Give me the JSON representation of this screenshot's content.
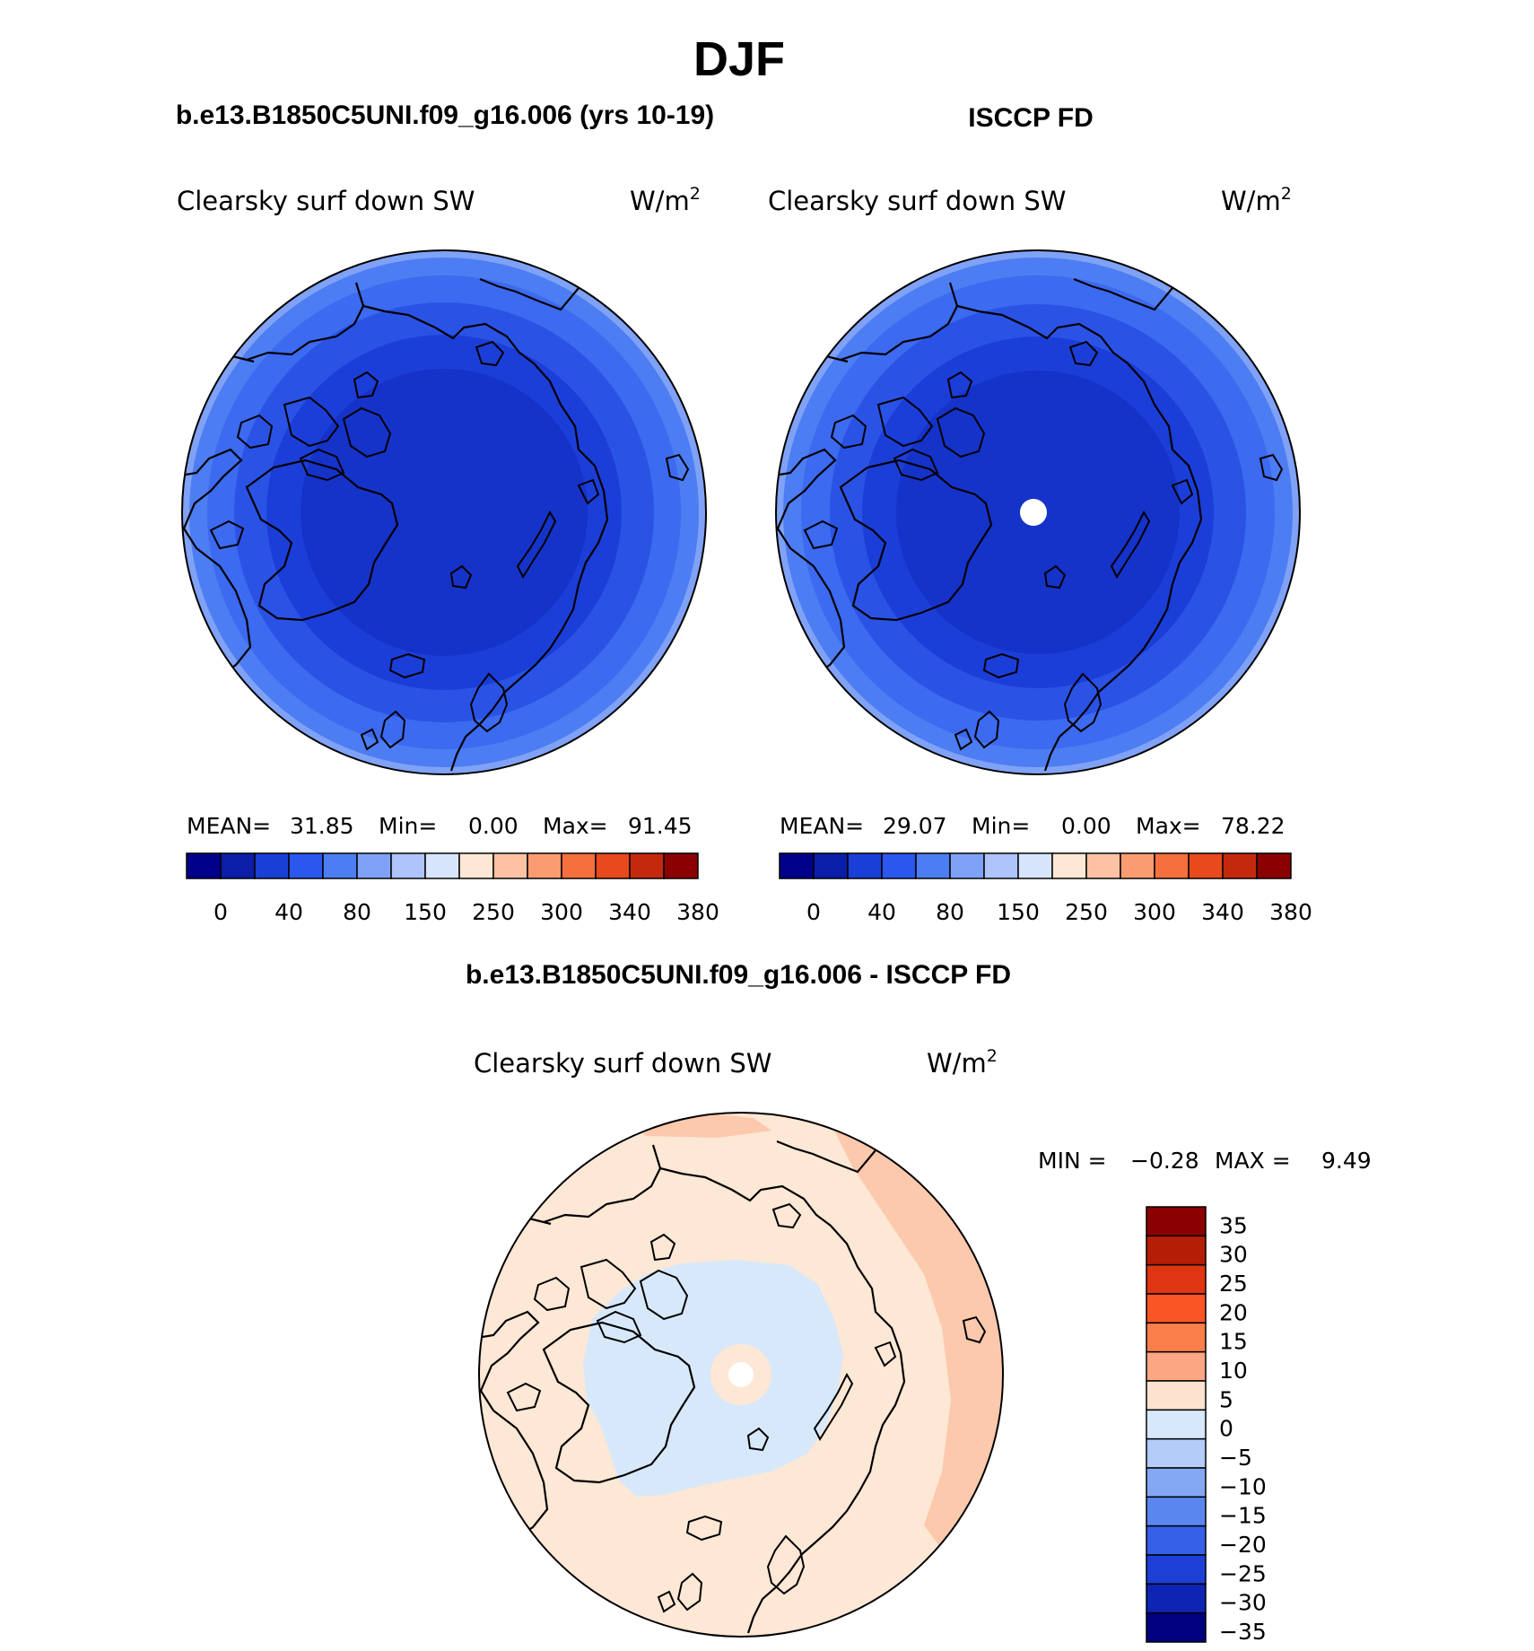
{
  "main_title": "DJF",
  "panels": [
    {
      "case_title": "b.e13.B1850C5UNI.f09_g16.006 (yrs 10-19)",
      "variable": "Clearsky surf down SW",
      "units_base": "W/m",
      "units_exp": "2",
      "stats": {
        "mean_label": "MEAN=",
        "mean": "31.85",
        "min_label": "Min=",
        "min": "0.00",
        "max_label": "Max=",
        "max": "91.45"
      },
      "center_hole": false,
      "rings": [
        "#4d7df2",
        "#3c6af0",
        "#2a53e6",
        "#1c3ed8",
        "#1533c8"
      ]
    },
    {
      "case_title": "ISCCP FD",
      "variable": "Clearsky surf down SW",
      "units_base": "W/m",
      "units_exp": "2",
      "stats": {
        "mean_label": "MEAN=",
        "mean": "29.07",
        "min_label": "Min=",
        "min": "0.00",
        "max_label": "Max=",
        "max": "78.22"
      },
      "center_hole": true,
      "rings": [
        "#4d7df2",
        "#3c6af0",
        "#2a53e6",
        "#1c3ed8",
        "#1533c8"
      ]
    }
  ],
  "colorbar": {
    "colors": [
      "#00008b",
      "#0a1ea8",
      "#1a3fd6",
      "#2b57ee",
      "#4d7df2",
      "#7fa2f7",
      "#aec4fa",
      "#d6e5fb",
      "#fde7d5",
      "#fcc2a3",
      "#fa9b70",
      "#f5703d",
      "#e8491d",
      "#c4290e",
      "#8b0000"
    ],
    "tick_labels": [
      "0",
      "40",
      "80",
      "150",
      "250",
      "300",
      "340",
      "380"
    ]
  },
  "diff_panel": {
    "title": "b.e13.B1850C5UNI.f09_g16.006 - ISCCP FD",
    "variable": "Clearsky surf down SW",
    "units_base": "W/m",
    "units_exp": "2",
    "stats": {
      "min_label": "MIN =",
      "min": "−0.28",
      "max_label": "MAX =",
      "max": "9.49"
    },
    "fill_background": "#fde7d5",
    "fill_positive_strong": "#fcc9ad",
    "fill_negative": "#d7e8fb"
  },
  "diff_colorbar": {
    "colors": [
      "#8b0000",
      "#b51e05",
      "#e03512",
      "#fa5524",
      "#fb7f4b",
      "#fca683",
      "#fde3cf",
      "#d7e8fb",
      "#b3ccf8",
      "#85a8f5",
      "#5a86f0",
      "#3660e8",
      "#1d3fd6",
      "#0d24b5",
      "#000080"
    ],
    "tick_labels": [
      "35",
      "30",
      "25",
      "20",
      "15",
      "10",
      "5",
      "0",
      "−5",
      "−10",
      "−15",
      "−20",
      "−25",
      "−30",
      "−35"
    ]
  }
}
